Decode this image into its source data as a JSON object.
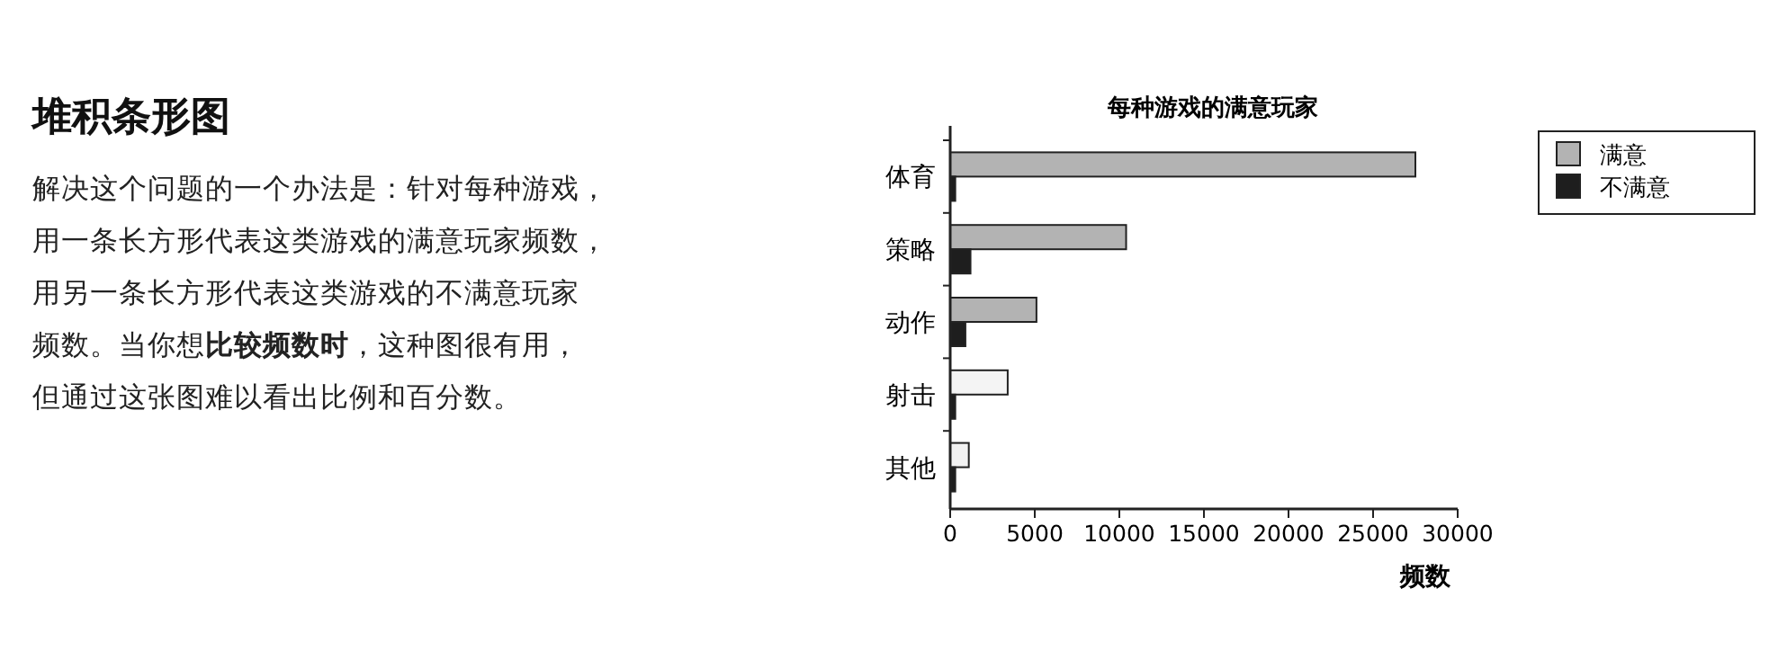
{
  "chart_data": {
    "type": "bar",
    "orientation": "horizontal",
    "title": "每种游戏的满意玩家",
    "xlabel": "频数",
    "categories": [
      "体育",
      "策略",
      "动作",
      "射击",
      "其他"
    ],
    "series": [
      {
        "name": "满意",
        "color": "#b3b3b3",
        "colors": [
          "#b3b3b3",
          "#b3b3b3",
          "#b3b3b3",
          "#f4f4f4",
          "#f2f2f2"
        ],
        "values": [
          27500,
          10400,
          5100,
          3400,
          1100
        ]
      },
      {
        "name": "不满意",
        "color": "#1e1e1e",
        "values": [
          300,
          1200,
          900,
          300,
          300
        ]
      }
    ],
    "xlim": [
      0,
      30000
    ],
    "xticks": [
      0,
      5000,
      10000,
      15000,
      20000,
      25000,
      30000
    ],
    "legend": "top right",
    "grid": false,
    "annotations": [
      "堆积条形图",
      "解决这个问题的一个办法是：针对每种游戏，",
      "用一条长方形代表这类游戏的满意玩家频数，",
      "用另一条长方形代表这类游戏的不满意玩家",
      "频数。当你想**比较频数时**，这种图很有用，",
      "但通过这张图难以看出比例和百分数。"
    ]
  }
}
